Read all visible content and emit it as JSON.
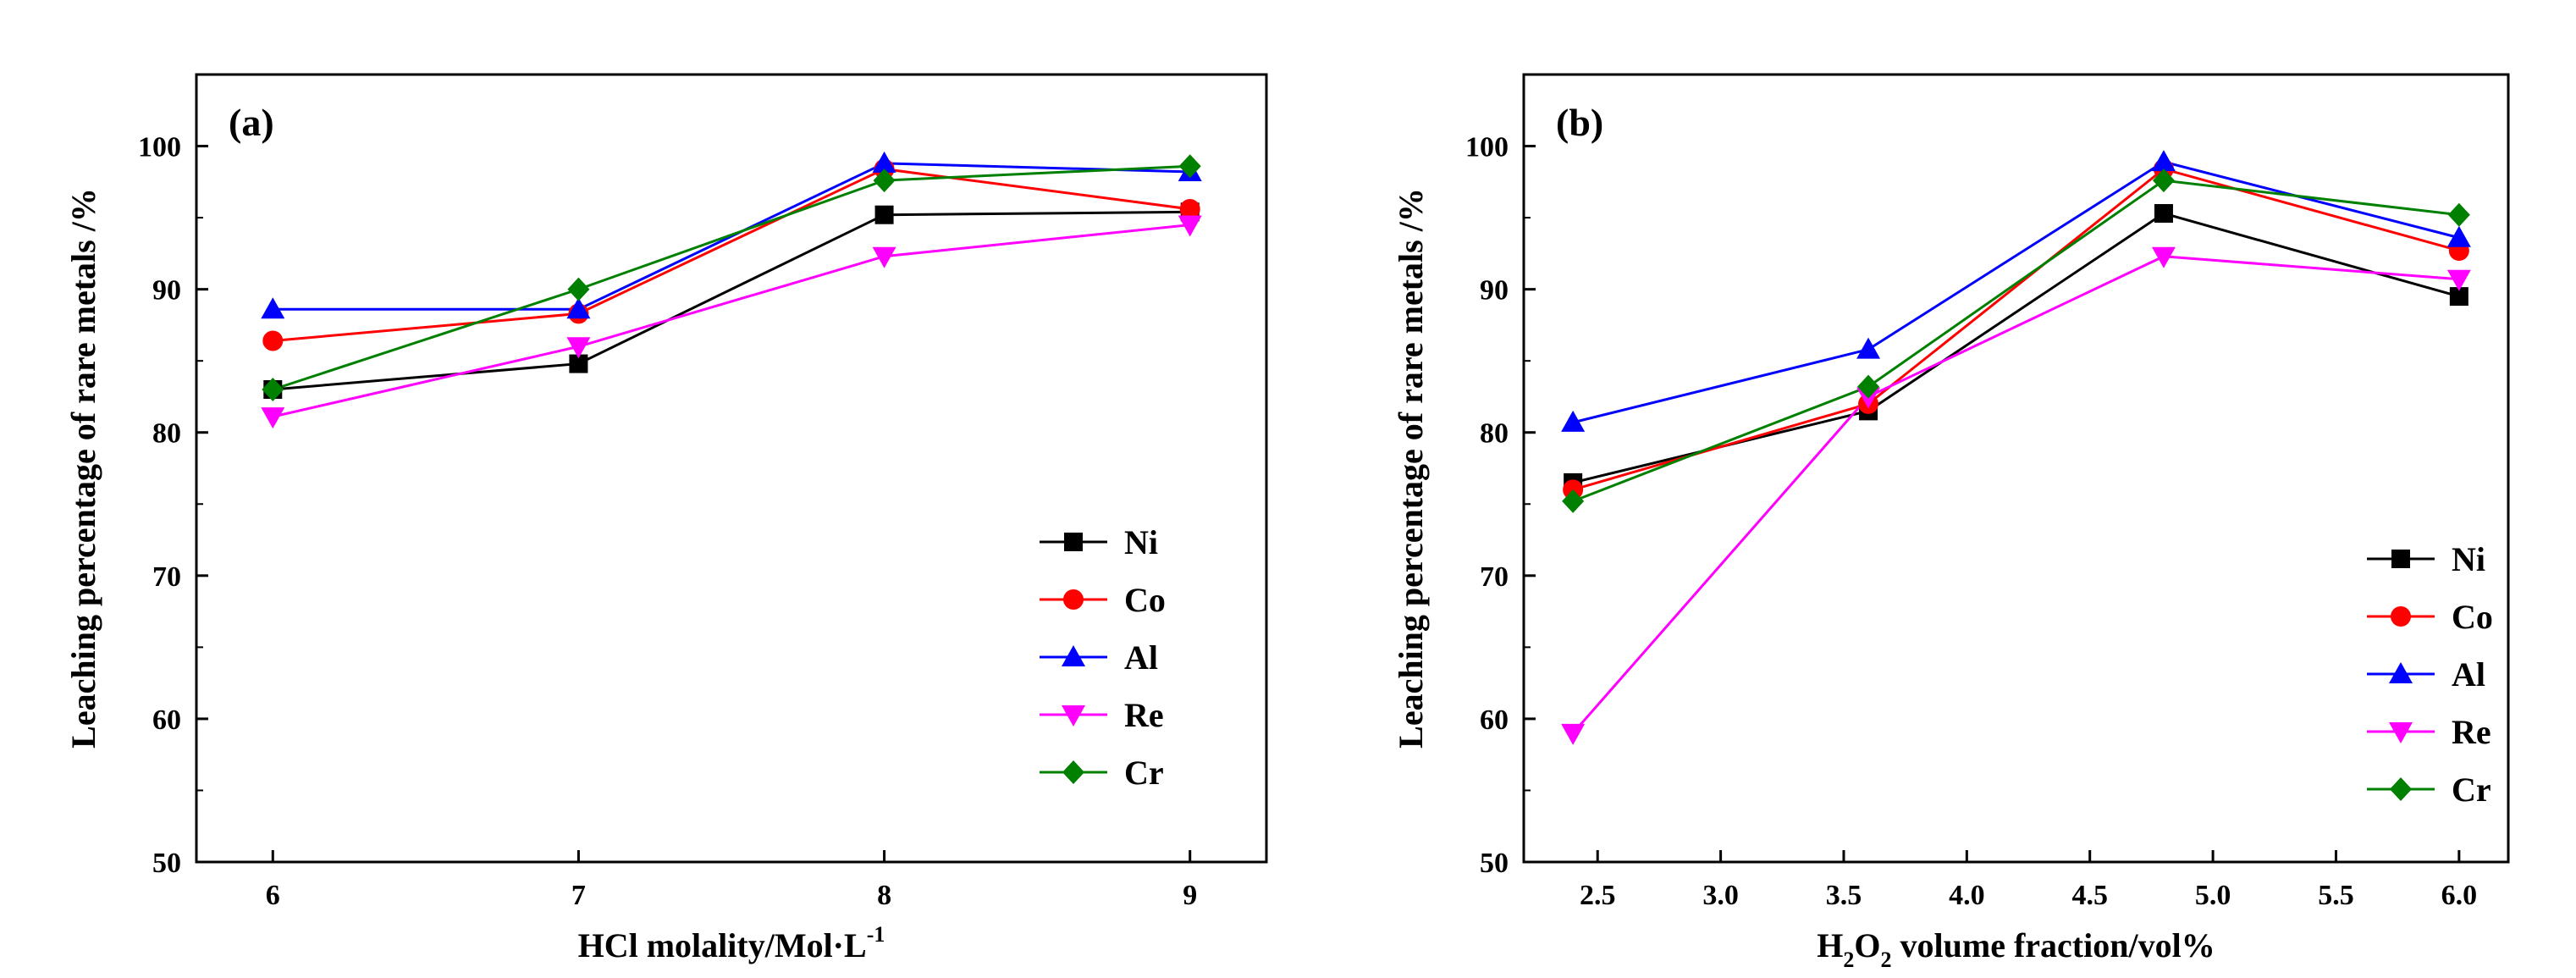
{
  "chart_data": [
    {
      "type": "line",
      "panel_label": "(a)",
      "xlabel": "HCl molality/Mol·L",
      "xlabel_sup": "-1",
      "ylabel": "Leaching percentage of rare metals /%",
      "xlim": [
        5.75,
        9.25
      ],
      "ylim": [
        50,
        105
      ],
      "xticks": [
        6,
        7,
        8,
        9
      ],
      "xtick_labels": [
        "6",
        "7",
        "8",
        "9"
      ],
      "yticks": [
        50,
        60,
        70,
        80,
        90,
        100
      ],
      "ytick_labels": [
        "50",
        "60",
        "70",
        "80",
        "90",
        "100"
      ],
      "x": [
        6,
        7,
        8,
        9
      ],
      "legend_position": "bottom-right",
      "grid": false,
      "series": [
        {
          "name": "Ni",
          "values": [
            83.0,
            84.8,
            95.2,
            95.4
          ],
          "color": "#000000",
          "marker": "square"
        },
        {
          "name": "Co",
          "values": [
            86.4,
            88.3,
            98.4,
            95.6
          ],
          "color": "#ff0000",
          "marker": "circle"
        },
        {
          "name": "Al",
          "values": [
            88.6,
            88.6,
            98.8,
            98.2
          ],
          "color": "#0000ff",
          "marker": "triangle-up"
        },
        {
          "name": "Re",
          "values": [
            81.1,
            86.0,
            92.3,
            94.5
          ],
          "color": "#ff00ff",
          "marker": "triangle-down"
        },
        {
          "name": "Cr",
          "values": [
            83.0,
            90.0,
            97.6,
            98.6
          ],
          "color": "#008000",
          "marker": "diamond"
        }
      ]
    },
    {
      "type": "line",
      "panel_label": "(b)",
      "xlabel_parts": [
        "H",
        "2",
        "O",
        "2",
        " volume fraction/vol%"
      ],
      "ylabel": "Leaching percentage of rare metals /%",
      "xlim": [
        2.2,
        6.2
      ],
      "ylim": [
        50,
        105
      ],
      "xticks": [
        2.5,
        3.0,
        3.5,
        4.0,
        4.5,
        5.0,
        5.5,
        6.0
      ],
      "xtick_labels": [
        "2.5",
        "3.0",
        "3.5",
        "4.0",
        "4.5",
        "5.0",
        "5.5",
        "6.0"
      ],
      "yticks": [
        50,
        60,
        70,
        80,
        90,
        100
      ],
      "ytick_labels": [
        "50",
        "60",
        "70",
        "80",
        "90",
        "100"
      ],
      "x": [
        2.4,
        3.6,
        4.8,
        6.0
      ],
      "legend_position": "bottom-right",
      "grid": false,
      "series": [
        {
          "name": "Ni",
          "values": [
            76.5,
            81.5,
            95.3,
            89.5
          ],
          "color": "#000000",
          "marker": "square"
        },
        {
          "name": "Co",
          "values": [
            76.0,
            82.0,
            98.4,
            92.7
          ],
          "color": "#ff0000",
          "marker": "circle"
        },
        {
          "name": "Al",
          "values": [
            80.7,
            85.8,
            98.9,
            93.6
          ],
          "color": "#0000ff",
          "marker": "triangle-up"
        },
        {
          "name": "Re",
          "values": [
            59.0,
            82.5,
            92.3,
            90.7
          ],
          "color": "#ff00ff",
          "marker": "triangle-down"
        },
        {
          "name": "Cr",
          "values": [
            75.2,
            83.2,
            97.6,
            95.2
          ],
          "color": "#008000",
          "marker": "diamond"
        }
      ]
    }
  ]
}
